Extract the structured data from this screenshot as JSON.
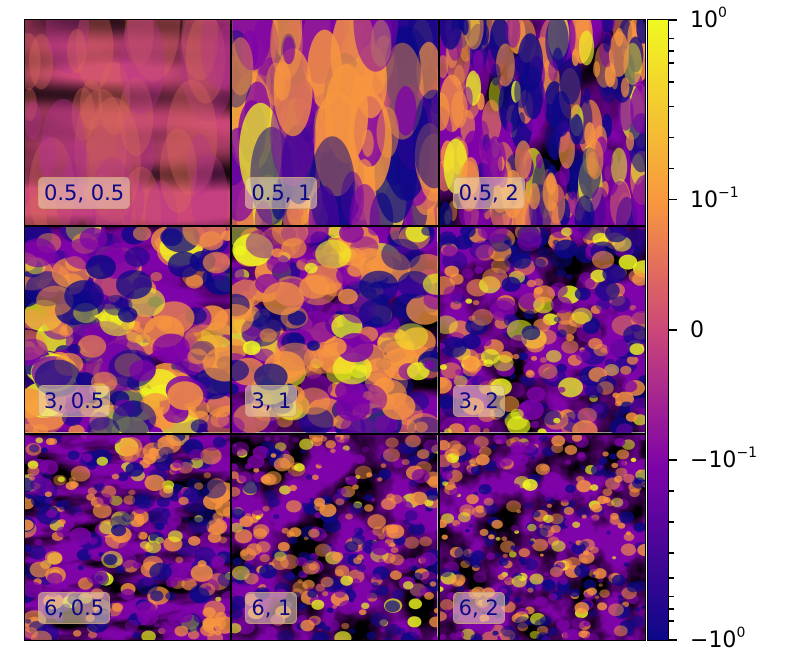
{
  "chart_data": {
    "type": "heatmap",
    "rows": 3,
    "cols": 3,
    "panel_labels": [
      [
        "0.5, 0.5",
        "0.5, 1",
        "0.5, 2"
      ],
      [
        "3, 0.5",
        "3, 1",
        "3, 2"
      ],
      [
        "6, 0.5",
        "6, 1",
        "6, 2"
      ]
    ],
    "colormap": "plasma",
    "colorbar": {
      "scale": "symlog",
      "range": [
        -1,
        1
      ],
      "ticks": [
        {
          "value": 1,
          "base": "10",
          "exp": "0",
          "sign": ""
        },
        {
          "value": 0.1,
          "base": "10",
          "exp": "−1",
          "sign": ""
        },
        {
          "value": 0,
          "base": "0",
          "exp": "",
          "sign": ""
        },
        {
          "value": -0.1,
          "base": "10",
          "exp": "−1",
          "sign": "−"
        },
        {
          "value": -1,
          "base": "10",
          "exp": "0",
          "sign": "−"
        }
      ]
    },
    "colors": {
      "low": "#0d0887",
      "purple": "#7e03a8",
      "magenta": "#cc4778",
      "orange": "#f89540",
      "high": "#f0f921"
    }
  }
}
